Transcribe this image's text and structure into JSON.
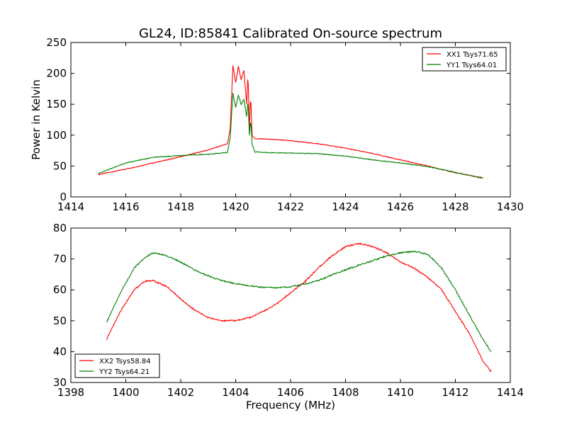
{
  "title": "GL24, ID:85841 Calibrated On-source spectrum",
  "xlabel": "Frequency (MHz)",
  "ylabel": "Power in Kelvin",
  "chart_data": [
    {
      "type": "line",
      "xlim": [
        1414,
        1430
      ],
      "ylim": [
        0,
        250
      ],
      "xticks": [
        1414,
        1416,
        1418,
        1420,
        1422,
        1424,
        1426,
        1428,
        1430
      ],
      "yticks": [
        0,
        50,
        100,
        150,
        200,
        250
      ],
      "legend_loc": "top-right",
      "series": [
        {
          "name": "XX1 Tsys71.65",
          "color": "#ff0000",
          "x": [
            1415,
            1416,
            1417,
            1418,
            1419,
            1419.7,
            1419.8,
            1419.9,
            1420.0,
            1420.1,
            1420.2,
            1420.3,
            1420.4,
            1420.45,
            1420.5,
            1420.55,
            1420.6,
            1420.7,
            1421,
            1422,
            1423,
            1424,
            1425,
            1426,
            1427,
            1428,
            1429
          ],
          "y": [
            36,
            45,
            55,
            65,
            76,
            86,
            110,
            213,
            185,
            211,
            190,
            205,
            150,
            200,
            110,
            165,
            100,
            94,
            94,
            91,
            86,
            79,
            70,
            60,
            50,
            39,
            31
          ]
        },
        {
          "name": "YY1 Tsys64.01",
          "color": "#008000",
          "x": [
            1415,
            1416,
            1417,
            1418,
            1419,
            1419.7,
            1419.8,
            1419.9,
            1420.0,
            1420.1,
            1420.2,
            1420.3,
            1420.4,
            1420.45,
            1420.5,
            1420.55,
            1420.6,
            1420.7,
            1421,
            1422,
            1423,
            1424,
            1425,
            1426,
            1427,
            1428,
            1429
          ],
          "y": [
            38,
            55,
            64,
            67,
            69,
            72,
            95,
            168,
            145,
            165,
            150,
            158,
            130,
            155,
            100,
            125,
            85,
            73,
            72,
            71,
            70,
            66,
            60,
            55,
            49,
            40,
            30
          ]
        }
      ]
    },
    {
      "type": "line",
      "xlim": [
        1398,
        1414
      ],
      "ylim": [
        30,
        80
      ],
      "xticks": [
        1398,
        1400,
        1402,
        1404,
        1406,
        1408,
        1410,
        1412,
        1414
      ],
      "yticks": [
        30,
        40,
        50,
        60,
        70,
        80
      ],
      "legend_loc": "bottom-left",
      "series": [
        {
          "name": "XX2 Tsys58.84",
          "color": "#ff0000",
          "x": [
            1399.3,
            1399.8,
            1400.3,
            1400.7,
            1401.0,
            1401.5,
            1402.0,
            1402.5,
            1403.0,
            1403.5,
            1404.0,
            1404.5,
            1405.0,
            1405.5,
            1406.0,
            1406.5,
            1407.0,
            1407.5,
            1408.0,
            1408.5,
            1409.0,
            1409.5,
            1410.0,
            1410.5,
            1411.0,
            1411.5,
            1412.0,
            1412.5,
            1413.0,
            1413.3
          ],
          "y": [
            44,
            53,
            60,
            62.8,
            63,
            61,
            57,
            53.5,
            51,
            50,
            50,
            51,
            53,
            55.5,
            59,
            62.5,
            67,
            71,
            74,
            75,
            74,
            72,
            69,
            67,
            64,
            60,
            53,
            46,
            37,
            33.5
          ]
        },
        {
          "name": "YY2 Tsys64.21",
          "color": "#008000",
          "x": [
            1399.3,
            1399.8,
            1400.3,
            1400.7,
            1401.0,
            1401.5,
            1402.0,
            1402.5,
            1403.0,
            1403.5,
            1404.0,
            1404.5,
            1405.0,
            1405.5,
            1406.0,
            1406.5,
            1407.0,
            1407.5,
            1408.0,
            1408.5,
            1409.0,
            1409.5,
            1410.0,
            1410.5,
            1411.0,
            1411.5,
            1412.0,
            1412.5,
            1413.0,
            1413.3
          ],
          "y": [
            49.5,
            59,
            67,
            70.5,
            72,
            71,
            69,
            66.5,
            64.5,
            63,
            62,
            61.3,
            60.8,
            60.7,
            61,
            61.8,
            63,
            64.8,
            66.5,
            68,
            69.5,
            71,
            72,
            72.5,
            71.5,
            67,
            60,
            52,
            44,
            40
          ]
        }
      ]
    }
  ]
}
